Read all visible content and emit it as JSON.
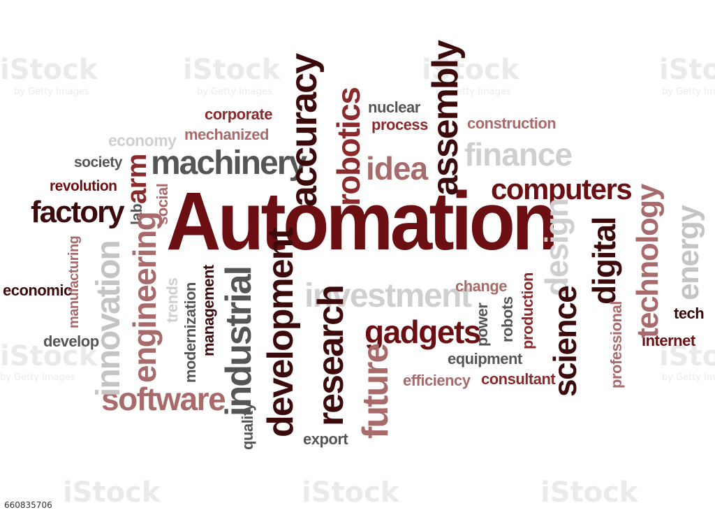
{
  "colors": {
    "dark_red": "#6b0f12",
    "medium_red": "#8a2a2c",
    "muted_red": "#a86a6a",
    "dark_gray": "#555555",
    "gray": "#8c8c8c",
    "light_gray": "#c4c4c4"
  },
  "words": {
    "automation": "Automation",
    "factory": "factory",
    "machinery": "machinery",
    "accuracy": "accuracy",
    "robotics": "robotics",
    "assembly": "assembly",
    "computers": "computers",
    "idea": "idea",
    "finance": "finance",
    "corporate": "corporate",
    "mechanized": "mechanized",
    "economy": "economy",
    "society": "society",
    "revolution": "revolution",
    "arm": "arm",
    "social": "social",
    "lab": "lab",
    "nuclear": "nuclear",
    "process": "process",
    "construction": "construction",
    "innovation": "innovation",
    "manufacturing": "manufacturing",
    "engineering": "engineering",
    "economic": "economic",
    "trends": "trends",
    "modernization": "modernization",
    "management": "management",
    "industrial": "industrial",
    "development": "development",
    "investment": "investment",
    "research": "research",
    "gadgets": "gadgets",
    "future": "future",
    "change": "change",
    "power": "power",
    "robots": "robots",
    "production": "production",
    "equipment": "equipment",
    "efficiency": "efficiency",
    "consultant": "consultant",
    "science": "science",
    "design": "design",
    "digital": "digital",
    "technology": "technology",
    "energy": "energy",
    "tech": "tech",
    "internet": "internet",
    "professional": "professional",
    "develop": "develop",
    "software": "software",
    "quality": "quality",
    "export": "export"
  },
  "watermark": {
    "text": "iStock",
    "subtext": "by Getty Images"
  },
  "stock_id": "660835706"
}
